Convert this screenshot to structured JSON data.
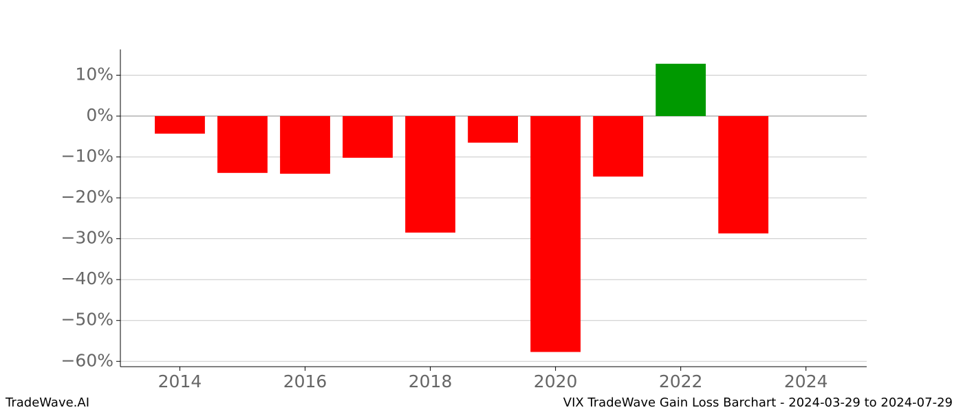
{
  "chart_data": {
    "type": "bar",
    "x": [
      2014,
      2015,
      2016,
      2017,
      2018,
      2019,
      2020,
      2021,
      2022,
      2023
    ],
    "values": [
      -4.3,
      -13.9,
      -14.1,
      -10.2,
      -28.5,
      -6.5,
      -57.7,
      -14.8,
      12.8,
      -28.7
    ],
    "positive_color": "#009900",
    "negative_color": "#ff0000",
    "xlim": [
      2013.05,
      2024.97
    ],
    "xticks": [
      2014,
      2016,
      2018,
      2020,
      2022,
      2024
    ],
    "ylim": [
      -61.3,
      16.3
    ],
    "yticks": [
      {
        "value": 10,
        "label": "10%"
      },
      {
        "value": 0,
        "label": "0%"
      },
      {
        "value": -10,
        "label": "−10%"
      },
      {
        "value": -20,
        "label": "−20%"
      },
      {
        "value": -30,
        "label": "−30%"
      },
      {
        "value": -40,
        "label": "−40%"
      },
      {
        "value": -50,
        "label": "−50%"
      },
      {
        "value": -60,
        "label": "−60%"
      }
    ],
    "grid": true
  },
  "footer": {
    "left": "TradeWave.AI",
    "right": "VIX TradeWave Gain Loss Barchart - 2024-03-29 to 2024-07-29"
  }
}
